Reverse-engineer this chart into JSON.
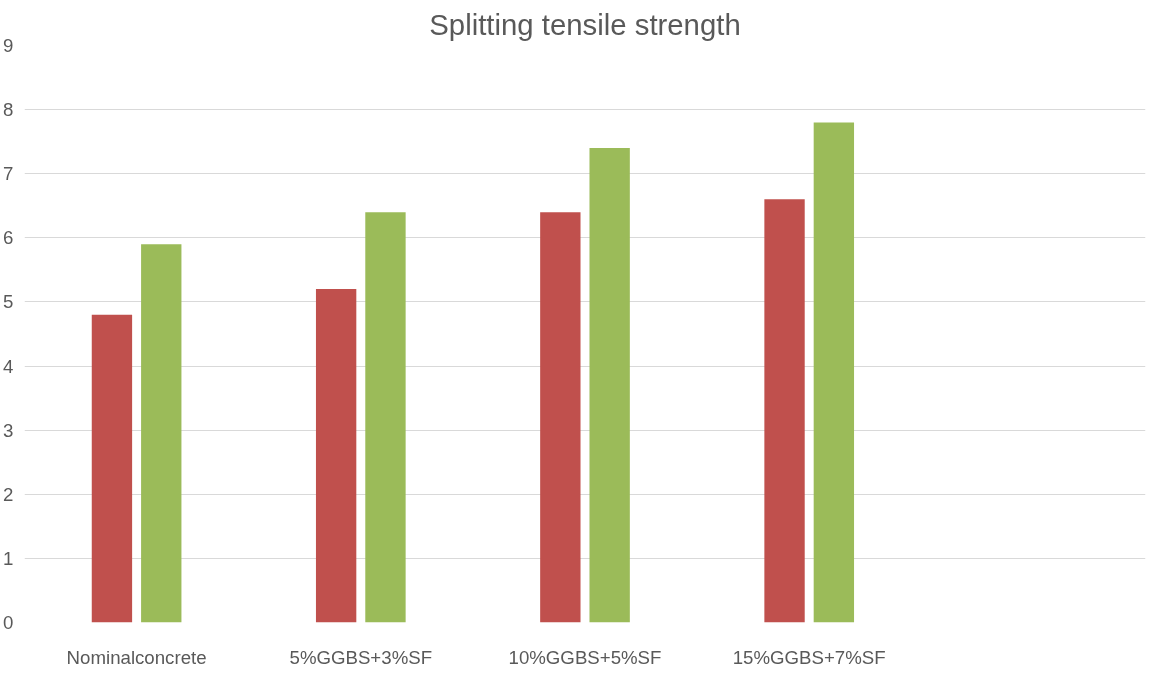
{
  "chart_data": {
    "type": "bar",
    "title": "Splitting tensile strength",
    "categories": [
      "Nominalconcrete",
      "5%GGBS+3%SF",
      "10%GGBS+5%SF",
      "15%GGBS+7%SF",
      null
    ],
    "series": [
      {
        "color": "#c0504d",
        "values": [
          4.8,
          5.2,
          6.4,
          6.6,
          null
        ]
      },
      {
        "color": "#9bbb59",
        "values": [
          5.9,
          6.4,
          7.4,
          7.8,
          null
        ]
      }
    ],
    "ylim": [
      0,
      9
    ],
    "yticks": [
      0,
      1,
      2,
      3,
      4,
      5,
      6,
      7,
      8,
      9
    ],
    "grid": "y"
  }
}
